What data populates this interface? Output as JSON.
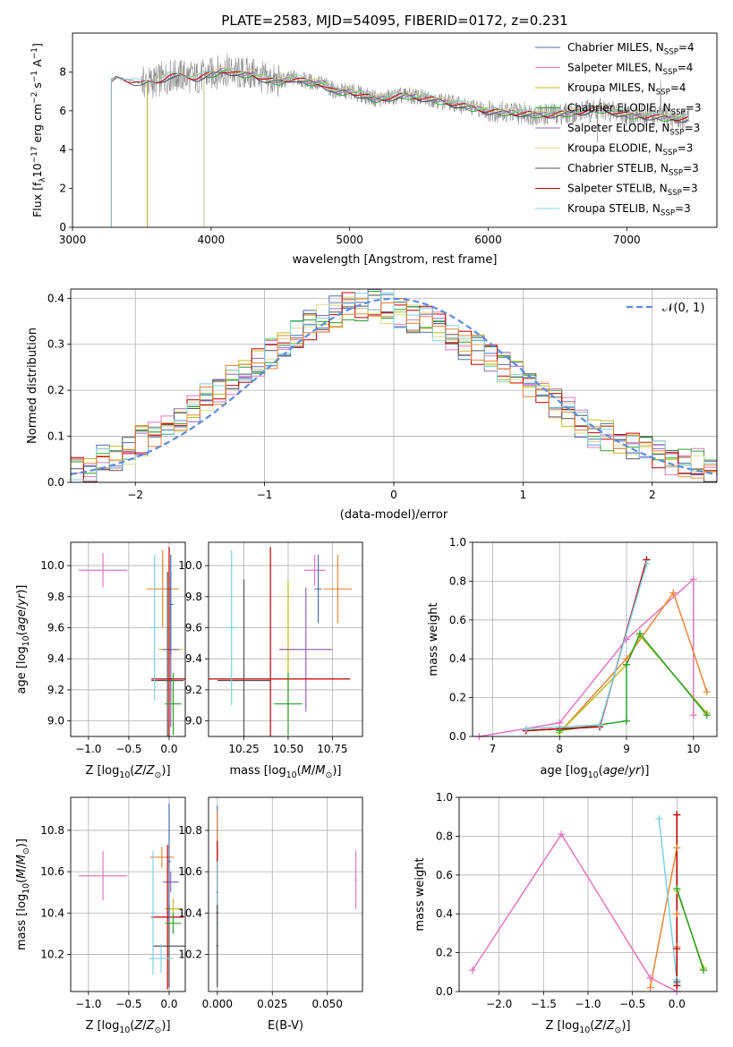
{
  "colors": {
    "chabrier_miles": "#4c72b0",
    "salpeter_miles": "#e377c2",
    "kroupa_miles": "#bcbd22",
    "chabrier_elodie": "#2ca02c",
    "salpeter_elodie": "#9467bd",
    "kroupa_elodie": "#dbdb8d",
    "chabrier_stelib": "#555555",
    "salpeter_stelib": "#c00000",
    "kroupa_stelib": "#80d0e0",
    "extra_orange": "#e6883a",
    "data_gray": "#8c8c8c",
    "normal_dashed": "#5b8de0",
    "grid": "#b0b0b0"
  },
  "chart_data": [
    {
      "type": "line",
      "id": "spectrum",
      "title": "PLATE=2583, MJD=54095, FIBERID=0172, z=0.231",
      "xlabel": "wavelength [Angstrom, rest frame]",
      "ylabel_parts": {
        "pre": "Flux [f",
        "sub1": "λ",
        "mid": "10",
        "sup1": "−17",
        "post1": " erg cm",
        "sup2": "−2",
        "post2": " s",
        "sup3": "−1",
        "post3": " A",
        "sup4": "−1",
        "end": "]"
      },
      "xlim": [
        3000,
        7650
      ],
      "ylim": [
        0,
        10
      ],
      "xticks": [
        3000,
        4000,
        5000,
        6000,
        7000
      ],
      "yticks": [
        0,
        2,
        4,
        6,
        8
      ],
      "grid": false,
      "legend_position": "top-right",
      "legend": [
        {
          "name": "Chabrier MILES, N",
          "sub": "SSP",
          "tail": "=4",
          "color_key": "chabrier_miles"
        },
        {
          "name": "Salpeter MILES, N",
          "sub": "SSP",
          "tail": "=4",
          "color_key": "salpeter_miles"
        },
        {
          "name": "Kroupa MILES, N",
          "sub": "SSP",
          "tail": "=4",
          "color_key": "kroupa_miles"
        },
        {
          "name": "Chabrier ELODIE, N",
          "sub": "SSP",
          "tail": "=3",
          "color_key": "chabrier_elodie"
        },
        {
          "name": "Salpeter ELODIE, N",
          "sub": "SSP",
          "tail": "=3",
          "color_key": "salpeter_elodie"
        },
        {
          "name": "Kroupa ELODIE, N",
          "sub": "SSP",
          "tail": "=3",
          "color_key": "kroupa_elodie"
        },
        {
          "name": "Chabrier STELIB, N",
          "sub": "SSP",
          "tail": "=3",
          "color_key": "chabrier_stelib"
        },
        {
          "name": "Salpeter STELIB, N",
          "sub": "SSP",
          "tail": "=3",
          "color_key": "salpeter_stelib"
        },
        {
          "name": "Kroupa STELIB, N",
          "sub": "SSP",
          "tail": "=3",
          "color_key": "kroupa_stelib"
        }
      ],
      "model_shape": {
        "x": [
          3280,
          3320,
          3400,
          3500,
          3600,
          3700,
          3800,
          3900,
          4000,
          4100,
          4200,
          4300,
          4400,
          4500,
          4600,
          4700,
          4800,
          4900,
          5000,
          5200,
          5400,
          5600,
          5800,
          6000,
          6200,
          6400,
          6600,
          6800,
          7000,
          7200,
          7400
        ],
        "y": [
          7.5,
          7.7,
          7.6,
          7.4,
          7.5,
          7.8,
          7.8,
          7.7,
          7.9,
          8.1,
          7.9,
          7.9,
          7.6,
          7.5,
          7.7,
          7.5,
          7.4,
          7.0,
          7.0,
          6.6,
          6.8,
          6.6,
          6.3,
          6.0,
          5.9,
          5.8,
          5.9,
          6.1,
          5.8,
          5.7,
          5.6
        ]
      },
      "model_starts": {
        "chabrier_miles": 3540,
        "salpeter_miles": 3540,
        "kroupa_miles": 3540,
        "chabrier_elodie": 3950,
        "salpeter_elodie": 3950,
        "kroupa_elodie": 3950,
        "chabrier_stelib": 3280,
        "salpeter_stelib": 3280,
        "kroupa_stelib": 3280
      },
      "data_x_range": [
        3280,
        7450
      ]
    },
    {
      "type": "line",
      "id": "residuals",
      "xlabel": "(data-model)/error",
      "ylabel": "Normed distribution",
      "xlim": [
        -2.5,
        2.5
      ],
      "ylim": [
        0,
        0.42
      ],
      "xticks": [
        -2,
        -1,
        0,
        1,
        2
      ],
      "yticks": [
        0.0,
        0.1,
        0.2,
        0.3,
        0.4
      ],
      "grid": true,
      "legend_position": "top-right",
      "legend_label": "𝒩(0, 1)",
      "bin_width": 0.1,
      "hist_base": [
        0.02,
        0.03,
        0.05,
        0.06,
        0.07,
        0.09,
        0.1,
        0.12,
        0.14,
        0.16,
        0.18,
        0.2,
        0.22,
        0.24,
        0.26,
        0.28,
        0.3,
        0.32,
        0.34,
        0.36,
        0.37,
        0.38,
        0.38,
        0.39,
        0.38,
        0.37,
        0.36,
        0.35,
        0.34,
        0.32,
        0.3,
        0.29,
        0.27,
        0.25,
        0.23,
        0.21,
        0.19,
        0.17,
        0.15,
        0.13,
        0.11,
        0.1,
        0.09,
        0.08,
        0.07,
        0.06,
        0.05,
        0.04,
        0.04,
        0.03
      ]
    },
    {
      "type": "scatter",
      "id": "age-vs-z",
      "xlabel_parts": {
        "pre": "Z [log",
        "sub": "10",
        "post": "(Z/Z",
        "sub2": "⊙",
        "end": ")]"
      },
      "ylabel_parts": {
        "pre": "age  [log",
        "sub": "10",
        "post": "(age/yr)]"
      },
      "xlim": [
        -1.22,
        0.2
      ],
      "ylim": [
        8.9,
        10.15
      ],
      "xticks": [
        -1.0,
        -0.5,
        0.0
      ],
      "yticks": [
        9.0,
        9.2,
        9.4,
        9.6,
        9.8,
        10.0
      ],
      "grid": true,
      "points": [
        {
          "x": -0.82,
          "y": 9.97,
          "xerr": 0.3,
          "yerr": 0.11,
          "color_key": "salpeter_miles"
        },
        {
          "x": -0.08,
          "y": 9.85,
          "xerr": 0.2,
          "yerr": 0.25,
          "color_key": "extra_orange"
        },
        {
          "x": 0.02,
          "y": 9.46,
          "xerr": 0.15,
          "yerr": 0.35,
          "color_key": "kroupa_miles"
        },
        {
          "x": 0.02,
          "y": 9.46,
          "xerr": 0.1,
          "yerr": 0.5,
          "color_key": "salpeter_elodie"
        },
        {
          "x": 0.0,
          "y": 9.27,
          "xerr": 0.22,
          "yerr": 0.85,
          "color_key": "salpeter_stelib"
        },
        {
          "x": -0.02,
          "y": 9.26,
          "xerr": 0.2,
          "yerr": 0.7,
          "color_key": "chabrier_stelib"
        },
        {
          "x": 0.05,
          "y": 9.11,
          "xerr": 0.1,
          "yerr": 0.2,
          "color_key": "chabrier_elodie"
        },
        {
          "x": -0.18,
          "y": 9.6,
          "xerr": 0.05,
          "yerr": 0.47,
          "color_key": "kroupa_stelib"
        },
        {
          "x": 0.02,
          "y": 9.75,
          "xerr": 0.03,
          "yerr": 0.32,
          "color_key": "chabrier_miles"
        }
      ]
    },
    {
      "type": "scatter",
      "id": "age-vs-mass",
      "xlabel_parts": {
        "pre": "mass [log",
        "sub": "10",
        "post": "(M/M",
        "sub2": "⊙",
        "end": ")]"
      },
      "xlim": [
        10.05,
        10.92
      ],
      "ylim": [
        8.9,
        10.15
      ],
      "xticks": [
        10.25,
        10.5,
        10.75
      ],
      "yticks": [
        9.0,
        9.2,
        9.4,
        9.6,
        9.8,
        10.0
      ],
      "grid": true,
      "points": [
        {
          "x": 10.65,
          "y": 9.97,
          "xerr": 0.06,
          "yerr": 0.1,
          "color_key": "salpeter_miles"
        },
        {
          "x": 10.78,
          "y": 9.85,
          "xerr": 0.08,
          "yerr": 0.22,
          "color_key": "extra_orange"
        },
        {
          "x": 10.5,
          "y": 9.46,
          "xerr": 0.05,
          "yerr": 0.45,
          "color_key": "kroupa_miles"
        },
        {
          "x": 10.6,
          "y": 9.46,
          "xerr": 0.15,
          "yerr": 0.4,
          "color_key": "salpeter_elodie"
        },
        {
          "x": 10.4,
          "y": 9.27,
          "xerr": 0.45,
          "yerr": 0.85,
          "color_key": "salpeter_stelib"
        },
        {
          "x": 10.25,
          "y": 9.26,
          "xerr": 0.15,
          "yerr": 0.65,
          "color_key": "chabrier_stelib"
        },
        {
          "x": 10.5,
          "y": 9.11,
          "xerr": 0.08,
          "yerr": 0.2,
          "color_key": "chabrier_elodie"
        },
        {
          "x": 10.18,
          "y": 9.6,
          "xerr": 0.03,
          "yerr": 0.5,
          "color_key": "kroupa_stelib"
        },
        {
          "x": 10.67,
          "y": 9.85,
          "xerr": 0.02,
          "yerr": 0.22,
          "color_key": "chabrier_miles"
        }
      ]
    },
    {
      "type": "line",
      "id": "weight-vs-age",
      "xlabel_parts": {
        "pre": "age  [log",
        "sub": "10",
        "post": "(age/yr)]"
      },
      "ylabel": "mass weight",
      "xlim": [
        6.7,
        10.35
      ],
      "ylim": [
        0,
        1.0
      ],
      "xticks": [
        7,
        8,
        9,
        10
      ],
      "yticks": [
        0.0,
        0.2,
        0.4,
        0.6,
        0.8,
        1.0
      ],
      "grid": true,
      "series": [
        {
          "color_key": "salpeter_miles",
          "x": [
            6.8,
            8.0,
            9.0,
            10.0,
            10.0
          ],
          "y": [
            0.0,
            0.07,
            0.5,
            0.81,
            0.11
          ]
        },
        {
          "color_key": "extra_orange",
          "x": [
            8.0,
            9.0,
            9.7,
            10.2
          ],
          "y": [
            0.02,
            0.4,
            0.74,
            0.23
          ]
        },
        {
          "color_key": "kroupa_miles",
          "x": [
            8.0,
            9.0,
            9.2,
            10.2
          ],
          "y": [
            0.02,
            0.37,
            0.52,
            0.12
          ]
        },
        {
          "color_key": "chabrier_elodie",
          "x": [
            8.0,
            9.0,
            9.0,
            9.2,
            10.2
          ],
          "y": [
            0.03,
            0.08,
            0.37,
            0.53,
            0.11
          ]
        },
        {
          "color_key": "chabrier_stelib",
          "x": [
            7.5,
            8.6,
            9.3
          ],
          "y": [
            0.03,
            0.05,
            0.91
          ]
        },
        {
          "color_key": "salpeter_stelib",
          "x": [
            7.5,
            8.6,
            9.3
          ],
          "y": [
            0.03,
            0.05,
            0.91
          ]
        },
        {
          "color_key": "kroupa_stelib",
          "x": [
            7.5,
            8.6,
            9.3
          ],
          "y": [
            0.04,
            0.06,
            0.89
          ]
        }
      ]
    },
    {
      "type": "scatter",
      "id": "mass-vs-z",
      "xlabel_parts": {
        "pre": "Z [log",
        "sub": "10",
        "post": "(Z/Z",
        "sub2": "⊙",
        "end": ")]"
      },
      "ylabel_parts": {
        "pre": "mass [log",
        "sub": "10",
        "post": "(M/M",
        "sub2": "⊙",
        "end": ")]"
      },
      "xlim": [
        -1.22,
        0.2
      ],
      "ylim": [
        10.02,
        10.96
      ],
      "xticks": [
        -1.0,
        -0.5,
        0.0
      ],
      "yticks": [
        10.2,
        10.4,
        10.6,
        10.8
      ],
      "grid": true,
      "points": [
        {
          "x": -0.82,
          "y": 10.58,
          "xerr": 0.3,
          "yerr": 0.12,
          "color_key": "salpeter_miles"
        },
        {
          "x": -0.09,
          "y": 10.67,
          "xerr": 0.15,
          "yerr": 0.05,
          "color_key": "extra_orange"
        },
        {
          "x": 0.05,
          "y": 10.42,
          "xerr": 0.1,
          "yerr": 0.05,
          "color_key": "kroupa_miles"
        },
        {
          "x": 0.02,
          "y": 10.55,
          "xerr": 0.1,
          "yerr": 0.05,
          "color_key": "salpeter_elodie"
        },
        {
          "x": -0.02,
          "y": 10.38,
          "xerr": 0.2,
          "yerr": 0.35,
          "color_key": "salpeter_stelib"
        },
        {
          "x": 0.0,
          "y": 10.24,
          "xerr": 0.2,
          "yerr": 0.2,
          "color_key": "chabrier_stelib"
        },
        {
          "x": 0.05,
          "y": 10.35,
          "xerr": 0.1,
          "yerr": 0.05,
          "color_key": "chabrier_elodie"
        },
        {
          "x": -0.1,
          "y": 10.18,
          "xerr": 0.15,
          "yerr": 0.07,
          "color_key": "kroupa_stelib"
        },
        {
          "x": -0.2,
          "y": 10.4,
          "xerr": 0.02,
          "yerr": 0.3,
          "color_key": "kroupa_stelib"
        },
        {
          "x": 0.0,
          "y": 10.65,
          "xerr": 0.02,
          "yerr": 0.28,
          "color_key": "chabrier_miles"
        }
      ]
    },
    {
      "type": "scatter",
      "id": "mass-vs-ebv",
      "xlabel": "E(B-V)",
      "xlim": [
        -0.004,
        0.066
      ],
      "ylim": [
        10.02,
        10.96
      ],
      "xticks": [
        0.0,
        0.025,
        0.05
      ],
      "yticks": [
        10.2,
        10.4,
        10.6,
        10.8
      ],
      "grid": true,
      "points": [
        {
          "x": 0.0,
          "y": 10.5,
          "xerr": 0.0005,
          "yerr": 0.42,
          "color_key": "chabrier_miles"
        },
        {
          "x": 0.0,
          "y": 10.6,
          "xerr": 0.0005,
          "yerr": 0.3,
          "color_key": "extra_orange"
        },
        {
          "x": 0.0,
          "y": 10.4,
          "xerr": 0.0005,
          "yerr": 0.35,
          "color_key": "salpeter_stelib"
        },
        {
          "x": 0.0,
          "y": 10.35,
          "xerr": 0.0005,
          "yerr": 0.3,
          "color_key": "kroupa_stelib"
        },
        {
          "x": 0.0,
          "y": 10.24,
          "xerr": 0.0005,
          "yerr": 0.2,
          "color_key": "chabrier_stelib"
        },
        {
          "x": 0.063,
          "y": 10.56,
          "xerr": 0.0005,
          "yerr": 0.14,
          "color_key": "salpeter_miles"
        }
      ]
    },
    {
      "type": "line",
      "id": "weight-vs-z",
      "xlabel_parts": {
        "pre": "Z [log",
        "sub": "10",
        "post": "(Z/Z",
        "sub2": "⊙",
        "end": ")]"
      },
      "ylabel": "mass weight",
      "xlim": [
        -2.45,
        0.45
      ],
      "ylim": [
        0,
        1.0
      ],
      "xticks": [
        -2.0,
        -1.5,
        -1.0,
        -0.5,
        0.0
      ],
      "yticks": [
        0.0,
        0.2,
        0.4,
        0.6,
        0.8,
        1.0
      ],
      "grid": true,
      "series": [
        {
          "color_key": "salpeter_miles",
          "x": [
            -2.3,
            -1.3,
            -0.3,
            0.0
          ],
          "y": [
            0.11,
            0.81,
            0.07,
            0.0
          ]
        },
        {
          "color_key": "extra_orange",
          "x": [
            -0.3,
            0.0,
            0.0,
            0.0
          ],
          "y": [
            0.02,
            0.74,
            0.4,
            0.23
          ]
        },
        {
          "color_key": "kroupa_stelib",
          "x": [
            -0.2,
            0.0,
            0.0
          ],
          "y": [
            0.89,
            0.06,
            0.04
          ]
        },
        {
          "color_key": "kroupa_miles",
          "x": [
            0.0,
            0.3
          ],
          "y": [
            0.52,
            0.12
          ]
        },
        {
          "color_key": "chabrier_elodie",
          "x": [
            0.0,
            0.3
          ],
          "y": [
            0.53,
            0.11
          ]
        },
        {
          "color_key": "chabrier_stelib",
          "x": [
            0.0,
            0.0,
            0.0
          ],
          "y": [
            0.91,
            0.05,
            0.03
          ]
        },
        {
          "color_key": "salpeter_stelib",
          "x": [
            0.0,
            0.0,
            0.0
          ],
          "y": [
            0.91,
            0.22,
            0.03
          ]
        }
      ]
    }
  ]
}
